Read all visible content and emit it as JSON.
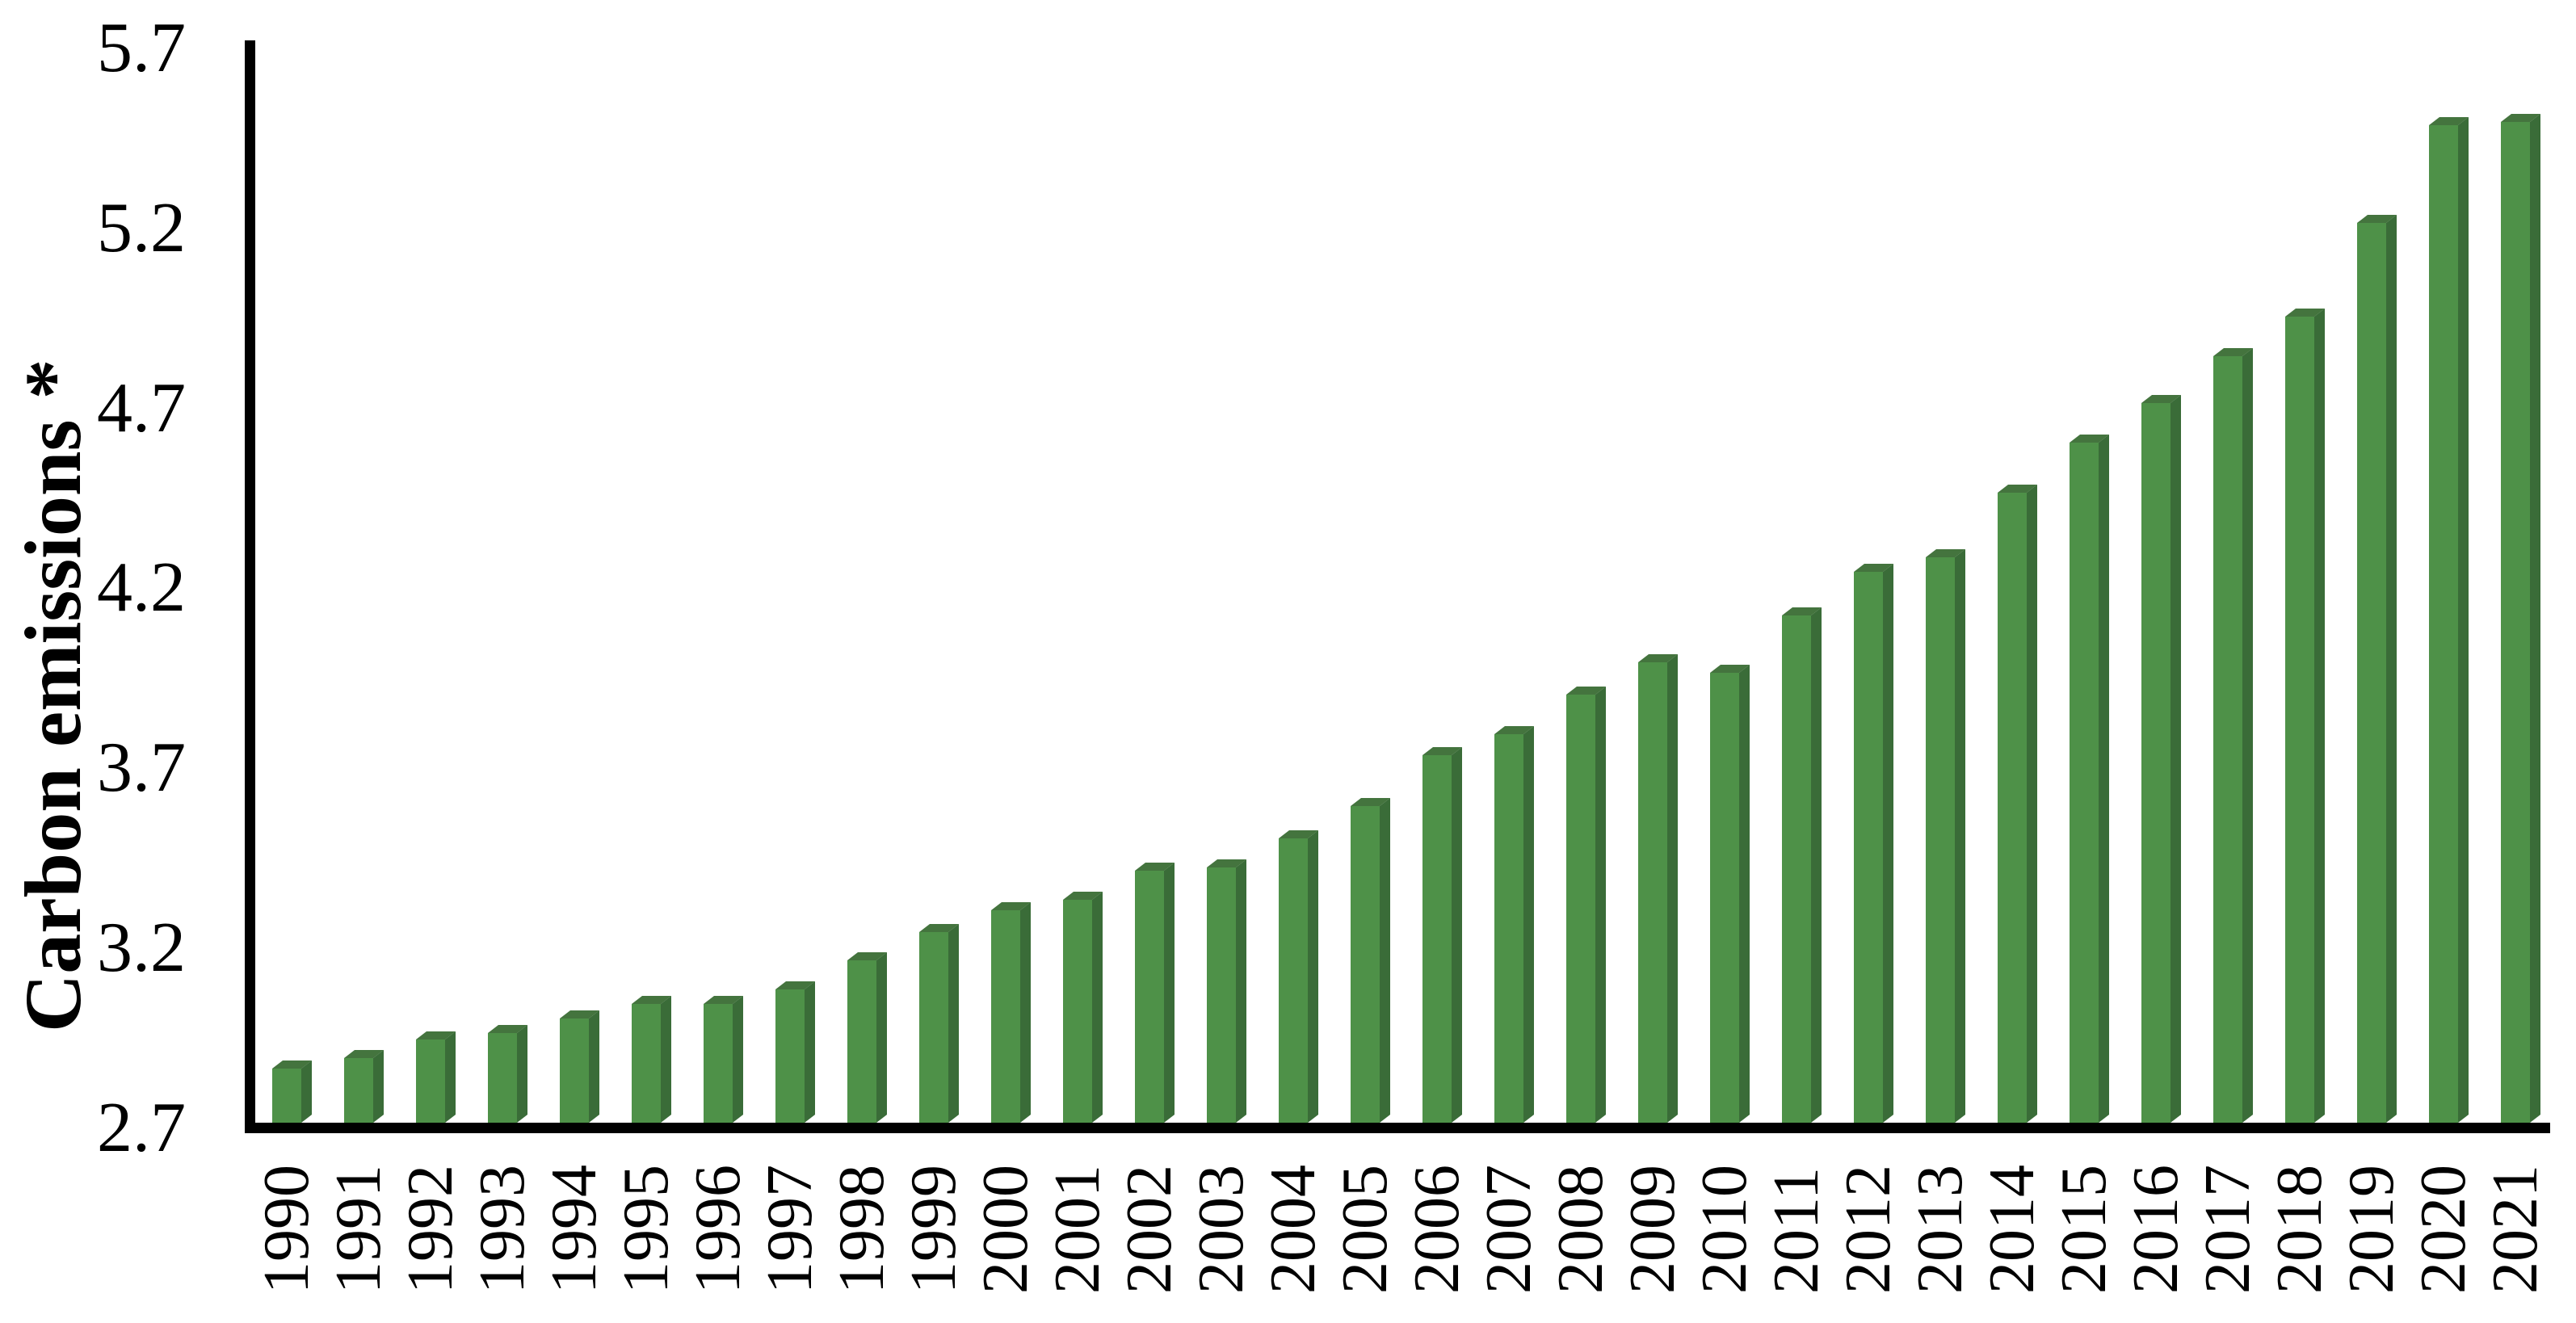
{
  "chart_data": {
    "type": "bar",
    "title": "",
    "xlabel": "",
    "ylabel": "Carbon emissions *",
    "categories": [
      "1990",
      "1991",
      "1992",
      "1993",
      "1994",
      "1995",
      "1996",
      "1997",
      "1998",
      "1999",
      "2000",
      "2001",
      "2002",
      "2003",
      "2004",
      "2005",
      "2006",
      "2007",
      "2008",
      "2009",
      "2010",
      "2011",
      "2012",
      "2013",
      "2014",
      "2015",
      "2016",
      "2017",
      "2018",
      "2019",
      "2020",
      "2021"
    ],
    "values": [
      2.85,
      2.88,
      2.93,
      2.95,
      2.99,
      3.03,
      3.03,
      3.07,
      3.15,
      3.23,
      3.29,
      3.32,
      3.4,
      3.41,
      3.49,
      3.58,
      3.72,
      3.78,
      3.89,
      3.98,
      3.95,
      4.11,
      4.23,
      4.27,
      4.45,
      4.59,
      4.7,
      4.83,
      4.94,
      5.2,
      5.47,
      5.48
    ],
    "ylim": [
      2.7,
      5.7
    ],
    "yticks": [
      2.7,
      3.2,
      3.7,
      4.2,
      4.7,
      5.2,
      5.7
    ],
    "ytick_labels": [
      "2.7",
      "3.2",
      "3.7",
      "4.2",
      "4.7",
      "5.2",
      "5.7"
    ],
    "grid": false,
    "legend_position": "none",
    "bar_style": "3d-bevel",
    "colors": {
      "bar_front": "#4e9148",
      "bar_side": "#3a6c38",
      "bar_top": "#44743e",
      "axis": "#000000",
      "text": "#000000",
      "background": "#ffffff"
    }
  }
}
